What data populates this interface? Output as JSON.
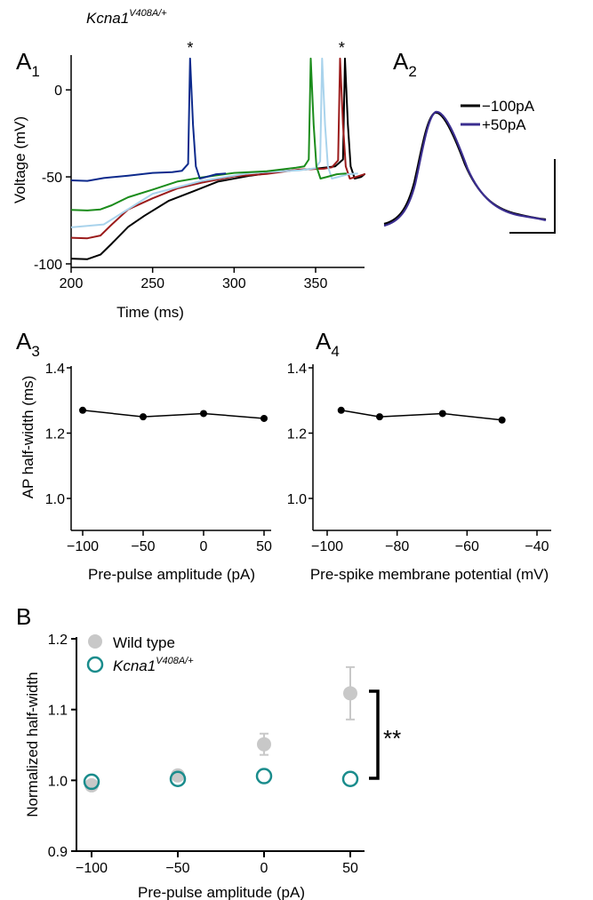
{
  "chart_data": [
    {
      "id": "A1",
      "type": "line",
      "panel_label": "A",
      "panel_sub": "1",
      "genotype_base": "Kcna1",
      "genotype_sup": "V408A/+",
      "xlabel": "Time (ms)",
      "ylabel": "Voltage (mV)",
      "xlim": [
        200,
        380
      ],
      "ylim": [
        -100,
        20
      ],
      "xticks": [
        "200",
        "250",
        "300",
        "350"
      ],
      "xtick_values": [
        200,
        250,
        300,
        350
      ],
      "yticks": [
        "0",
        "-50",
        "-100"
      ],
      "ytick_values": [
        0,
        -50,
        -100
      ],
      "spike_marker": "*",
      "spike_marks_at": [
        273,
        366
      ],
      "series": [
        {
          "color": "#000000",
          "spike_time": 368,
          "points": [
            [
              200,
              -97
            ],
            [
              210,
              -97
            ],
            [
              218,
              -95
            ],
            [
              225,
              -88
            ],
            [
              235,
              -79
            ],
            [
              245,
              -72
            ],
            [
              260,
              -64
            ],
            [
              275,
              -58
            ],
            [
              290,
              -53
            ],
            [
              310,
              -49
            ],
            [
              330,
              -47
            ],
            [
              350,
              -45
            ],
            [
              362,
              -44
            ]
          ]
        },
        {
          "color": "#9b1b1b",
          "spike_time": 365,
          "points": [
            [
              200,
              -85
            ],
            [
              210,
              -85
            ],
            [
              218,
              -84
            ],
            [
              225,
              -77
            ],
            [
              235,
              -69
            ],
            [
              250,
              -62
            ],
            [
              265,
              -57
            ],
            [
              280,
              -53
            ],
            [
              300,
              -50
            ],
            [
              320,
              -48
            ],
            [
              340,
              -46
            ],
            [
              355,
              -45
            ],
            [
              360,
              -44.5
            ]
          ]
        },
        {
          "color": "#a9d3ec",
          "spike_time": 354,
          "points": [
            [
              200,
              -79
            ],
            [
              220,
              -77
            ],
            [
              250,
              -60
            ],
            [
              280,
              -52
            ],
            [
              310,
              -48
            ],
            [
              340,
              -46
            ],
            [
              350,
              -45
            ]
          ]
        },
        {
          "color": "#1b8c1b",
          "spike_time": 347,
          "points": [
            [
              200,
              -69
            ],
            [
              210,
              -69
            ],
            [
              218,
              -69
            ],
            [
              225,
              -66
            ],
            [
              235,
              -62
            ],
            [
              250,
              -57
            ],
            [
              265,
              -53
            ],
            [
              280,
              -50
            ],
            [
              300,
              -48
            ],
            [
              320,
              -46.5
            ],
            [
              338,
              -45
            ],
            [
              343,
              -44
            ]
          ]
        },
        {
          "color": "#0d2a8c",
          "spike_time": 273,
          "points": [
            [
              200,
              -52
            ],
            [
              210,
              -52
            ],
            [
              220,
              -51
            ],
            [
              235,
              -49
            ],
            [
              250,
              -48
            ],
            [
              262,
              -47
            ],
            [
              268,
              -46.5
            ]
          ]
        }
      ]
    },
    {
      "id": "A2",
      "type": "line",
      "panel_label": "A",
      "panel_sub": "2",
      "legend": [
        {
          "label": "−100pA",
          "color": "#000000"
        },
        {
          "label": "+50pA",
          "color": "#3a2d8f"
        }
      ]
    },
    {
      "id": "A3",
      "type": "line",
      "panel_label": "A",
      "panel_sub": "3",
      "xlabel": "Pre-pulse amplitude (pA)",
      "ylabel": "AP half-width (ms)",
      "xlim": [
        -100,
        50
      ],
      "ylim": [
        0.9,
        1.4
      ],
      "xticks": [
        "−100",
        "−50",
        "0",
        "50"
      ],
      "xtick_values": [
        -100,
        -50,
        0,
        50
      ],
      "yticks": [
        "1.4",
        "1.2",
        "1.0"
      ],
      "ytick_values": [
        1.4,
        1.2,
        1.0
      ],
      "x": [
        -100,
        -50,
        0,
        50
      ],
      "y": [
        1.27,
        1.25,
        1.26,
        1.245
      ]
    },
    {
      "id": "A4",
      "type": "line",
      "panel_label": "A",
      "panel_sub": "4",
      "xlabel": "Pre-spike membrane potential (mV)",
      "xlim": [
        -100,
        -40
      ],
      "ylim": [
        0.9,
        1.4
      ],
      "xticks": [
        "−100",
        "−80",
        "−60",
        "−40"
      ],
      "xtick_values": [
        -100,
        -80,
        -60,
        -40
      ],
      "yticks": [
        "1.4",
        "1.2",
        "1.0"
      ],
      "ytick_values": [
        1.4,
        1.2,
        1.0
      ],
      "x": [
        -96,
        -85,
        -67,
        -50
      ],
      "y": [
        1.27,
        1.25,
        1.26,
        1.24
      ]
    },
    {
      "id": "B",
      "type": "scatter",
      "panel_label": "B",
      "xlabel": "Pre-pulse amplitude (pA)",
      "ylabel": "Normalized half-width",
      "xlim": [
        -100,
        50
      ],
      "ylim": [
        0.9,
        1.2
      ],
      "xticks": [
        "−100",
        "−50",
        "0",
        "50"
      ],
      "xtick_values": [
        -100,
        -50,
        0,
        50
      ],
      "yticks": [
        "1.2",
        "1.1",
        "1.0",
        "0.9"
      ],
      "ytick_values": [
        1.2,
        1.1,
        1.0,
        0.9
      ],
      "significance": "**",
      "series": [
        {
          "name": "Wild type",
          "color": "#c8c8c8",
          "marker": "filled",
          "x": [
            -100,
            -50,
            0,
            50
          ],
          "y": [
            0.993,
            1.007,
            1.051,
            1.123
          ],
          "err": [
            0.006,
            0.005,
            0.015,
            0.037
          ]
        },
        {
          "name_base": "Kcna1",
          "name_sup": "V408A/+",
          "color": "#1a8c8c",
          "marker": "open",
          "x": [
            -100,
            -50,
            0,
            50
          ],
          "y": [
            0.998,
            1.002,
            1.006,
            1.002
          ],
          "err": [
            0,
            0,
            0,
            0
          ]
        }
      ]
    }
  ]
}
